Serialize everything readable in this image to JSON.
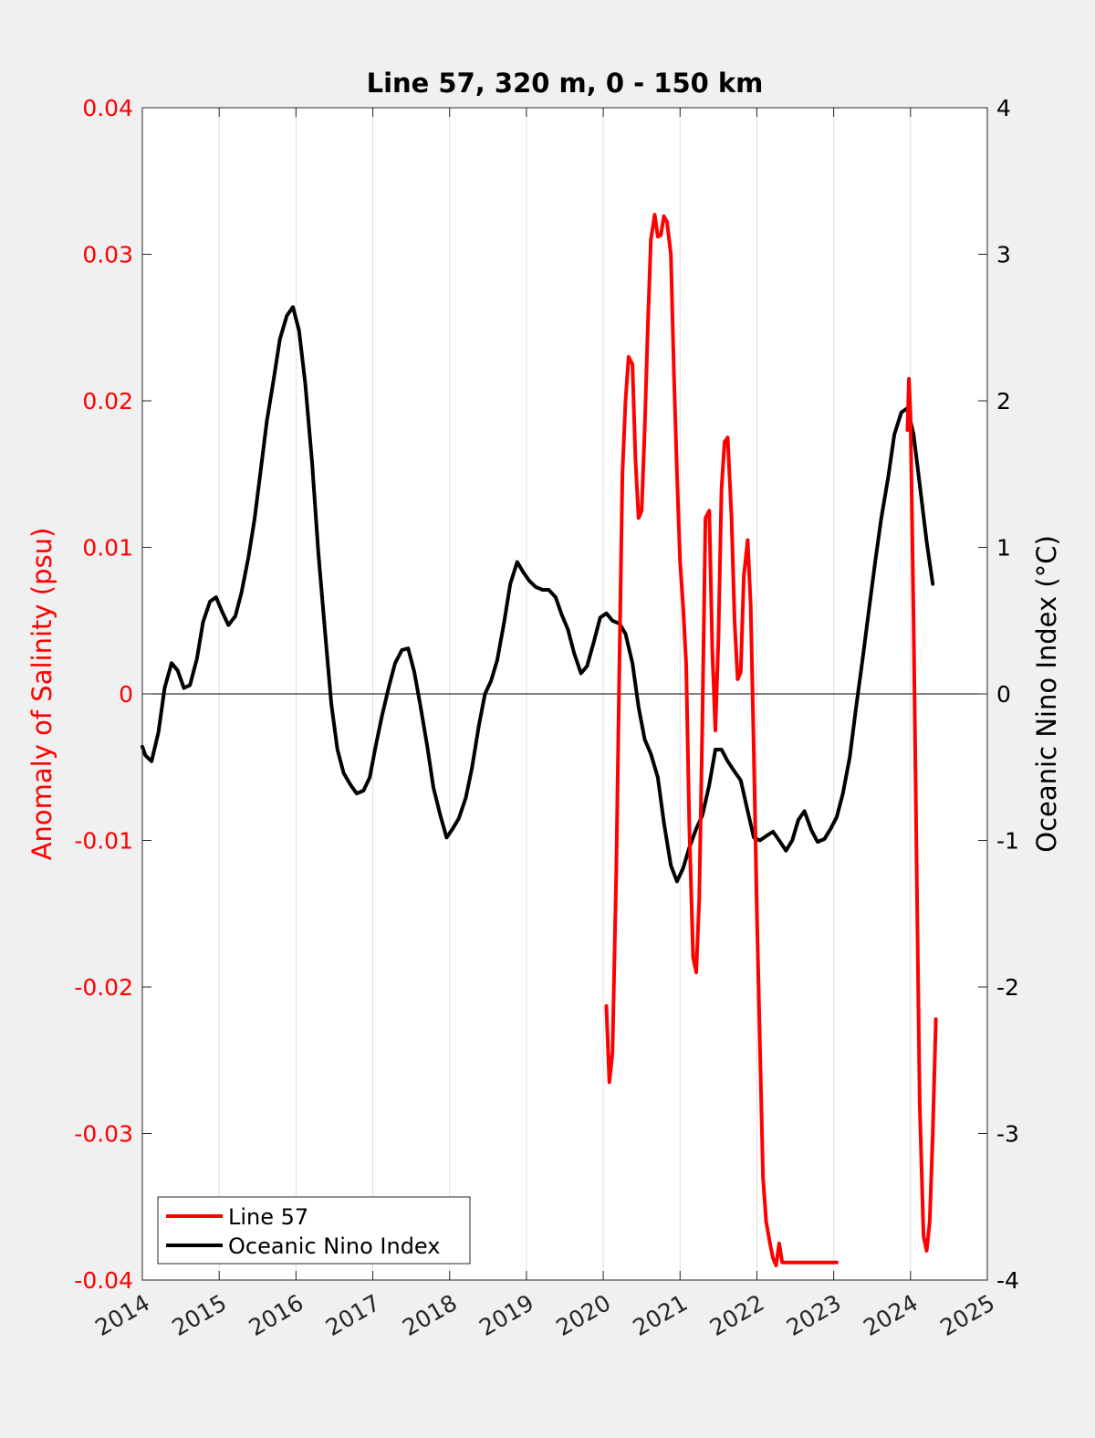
{
  "chart_data": {
    "type": "line",
    "title": "Line 57, 320 m, 0 - 150 km",
    "xlabel": "",
    "ylabel_left": "Anomaly of Salinity (psu)",
    "ylabel_right": "Oceanic Nino Index (°C)",
    "xlim": [
      2014,
      2025
    ],
    "ylim_left": [
      -0.04,
      0.04
    ],
    "ylim_right": [
      -4,
      4
    ],
    "x_ticks": [
      "2014",
      "2015",
      "2016",
      "2017",
      "2018",
      "2019",
      "2020",
      "2021",
      "2022",
      "2023",
      "2024",
      "2025"
    ],
    "y_ticks_left": [
      "-0.04",
      "-0.03",
      "-0.02",
      "-0.01",
      "0",
      "0.01",
      "0.02",
      "0.03",
      "0.04"
    ],
    "y_ticks_right": [
      "-4",
      "-3",
      "-2",
      "-1",
      "0",
      "1",
      "2",
      "3",
      "4"
    ],
    "grid": "vertical",
    "zero_line": true,
    "legend_position": "bottom-left",
    "colors": {
      "line57": "#ff0000",
      "oni": "#000000",
      "left_axis": "#ff0000",
      "right_axis": "#000000",
      "plot_bg": "#ffffff",
      "figure_bg": "#f0f0f0"
    },
    "series": [
      {
        "name": "Line 57",
        "axis": "left",
        "color": "#ff0000",
        "x": [
          2020.04,
          2020.08,
          2020.12,
          2020.17,
          2020.21,
          2020.25,
          2020.29,
          2020.33,
          2020.38,
          2020.42,
          2020.46,
          2020.5,
          2020.54,
          2020.58,
          2020.62,
          2020.67,
          2020.71,
          2020.75,
          2020.79,
          2020.83,
          2020.88,
          2020.92,
          2020.96,
          2021.0,
          2021.04,
          2021.08,
          2021.12,
          2021.17,
          2021.21,
          2021.25,
          2021.29,
          2021.33,
          2021.38,
          2021.42,
          2021.46,
          2021.5,
          2021.54,
          2021.58,
          2021.62,
          2021.67,
          2021.71,
          2021.75,
          2021.79,
          2021.83,
          2021.88,
          2021.92,
          2021.96,
          2022.0,
          2022.04,
          2022.08,
          2022.12,
          2022.17,
          2022.21,
          2022.25,
          2022.29,
          2022.33,
          2022.38,
          2022.42,
          2022.46,
          2022.5,
          2022.54,
          2022.58,
          2022.62,
          2022.67,
          2022.71,
          2022.75,
          2022.79,
          2022.83,
          2022.88,
          2022.92,
          2022.96,
          2023.0,
          2023.04
        ],
        "y": [
          -0.0213,
          -0.0265,
          -0.0245,
          -0.012,
          0.002,
          0.015,
          0.02,
          0.023,
          0.0225,
          0.016,
          0.012,
          0.0125,
          0.018,
          0.025,
          0.031,
          0.0327,
          0.0312,
          0.0313,
          0.0326,
          0.0322,
          0.03,
          0.022,
          0.015,
          0.009,
          0.006,
          0.002,
          -0.009,
          -0.018,
          -0.019,
          -0.014,
          -0.002,
          0.012,
          0.0125,
          0.003,
          -0.0025,
          0.004,
          0.014,
          0.0172,
          0.0175,
          0.012,
          0.005,
          0.001,
          0.0015,
          0.008,
          0.0105,
          0.006,
          -0.004,
          -0.015,
          -0.024,
          -0.033,
          -0.036,
          -0.0375,
          -0.0385,
          -0.039,
          -0.0375,
          -0.0388,
          -0.0388,
          -0.0388,
          -0.0388,
          -0.0388,
          -0.0388,
          -0.0388,
          -0.0388,
          -0.0388,
          -0.0388,
          -0.0388,
          -0.0388,
          -0.0388,
          -0.0388,
          -0.0388,
          -0.0388,
          -0.0388,
          -0.0388
        ]
      },
      {
        "name": "Line 57",
        "axis": "left",
        "color": "#ff0000",
        "x": [
          2023.96,
          2023.98,
          2024.0,
          2024.04,
          2024.08,
          2024.12,
          2024.17,
          2024.21,
          2024.25,
          2024.29,
          2024.33
        ],
        "y": [
          0.018,
          0.0215,
          0.019,
          0.005,
          -0.012,
          -0.028,
          -0.037,
          -0.038,
          -0.036,
          -0.03,
          -0.0222
        ]
      },
      {
        "name": "Oceanic Nino Index",
        "axis": "right",
        "color": "#000000",
        "x": [
          2014.0,
          2014.04,
          2014.12,
          2014.21,
          2014.29,
          2014.38,
          2014.46,
          2014.54,
          2014.62,
          2014.71,
          2014.79,
          2014.88,
          2014.96,
          2015.04,
          2015.12,
          2015.21,
          2015.29,
          2015.38,
          2015.46,
          2015.54,
          2015.62,
          2015.71,
          2015.79,
          2015.88,
          2015.96,
          2016.04,
          2016.12,
          2016.21,
          2016.29,
          2016.38,
          2016.46,
          2016.54,
          2016.62,
          2016.71,
          2016.79,
          2016.88,
          2016.96,
          2017.04,
          2017.12,
          2017.21,
          2017.29,
          2017.38,
          2017.46,
          2017.54,
          2017.62,
          2017.71,
          2017.79,
          2017.88,
          2017.96,
          2018.04,
          2018.12,
          2018.21,
          2018.29,
          2018.38,
          2018.46,
          2018.54,
          2018.62,
          2018.71,
          2018.79,
          2018.88,
          2018.96,
          2019.04,
          2019.12,
          2019.21,
          2019.29,
          2019.38,
          2019.46,
          2019.54,
          2019.62,
          2019.71,
          2019.79,
          2019.88,
          2019.96,
          2020.04,
          2020.12,
          2020.21,
          2020.29,
          2020.38,
          2020.46,
          2020.54,
          2020.62,
          2020.71,
          2020.79,
          2020.88,
          2020.96,
          2021.04,
          2021.12,
          2021.21,
          2021.29,
          2021.38,
          2021.46,
          2021.54,
          2021.62,
          2021.71,
          2021.79,
          2021.88,
          2021.96,
          2022.04,
          2022.12,
          2022.21,
          2022.29,
          2022.38,
          2022.46,
          2022.54,
          2022.62,
          2022.71,
          2022.79,
          2022.88,
          2022.96,
          2023.04,
          2023.12,
          2023.21,
          2023.29,
          2023.38,
          2023.46,
          2023.54,
          2023.62,
          2023.71,
          2023.79,
          2023.88,
          2023.96,
          2024.04,
          2024.12,
          2024.21,
          2024.29
        ],
        "y": [
          -0.36,
          -0.42,
          -0.46,
          -0.26,
          0.04,
          0.21,
          0.16,
          0.04,
          0.06,
          0.24,
          0.49,
          0.63,
          0.66,
          0.56,
          0.47,
          0.53,
          0.69,
          0.93,
          1.19,
          1.52,
          1.86,
          2.15,
          2.42,
          2.58,
          2.64,
          2.48,
          2.12,
          1.58,
          0.97,
          0.41,
          -0.07,
          -0.38,
          -0.54,
          -0.62,
          -0.68,
          -0.66,
          -0.57,
          -0.35,
          -0.15,
          0.05,
          0.21,
          0.3,
          0.31,
          0.15,
          -0.08,
          -0.36,
          -0.64,
          -0.83,
          -0.98,
          -0.92,
          -0.85,
          -0.71,
          -0.51,
          -0.22,
          0.0,
          0.09,
          0.23,
          0.49,
          0.75,
          0.9,
          0.83,
          0.77,
          0.73,
          0.71,
          0.71,
          0.66,
          0.54,
          0.44,
          0.28,
          0.14,
          0.19,
          0.36,
          0.52,
          0.55,
          0.5,
          0.48,
          0.41,
          0.21,
          -0.09,
          -0.31,
          -0.41,
          -0.57,
          -0.88,
          -1.17,
          -1.28,
          -1.19,
          -1.05,
          -0.92,
          -0.83,
          -0.62,
          -0.38,
          -0.38,
          -0.46,
          -0.53,
          -0.59,
          -0.8,
          -0.98,
          -1.0,
          -0.97,
          -0.94,
          -1.0,
          -1.07,
          -1.0,
          -0.86,
          -0.8,
          -0.93,
          -1.01,
          -0.99,
          -0.92,
          -0.84,
          -0.68,
          -0.43,
          -0.1,
          0.25,
          0.58,
          0.9,
          1.2,
          1.48,
          1.77,
          1.92,
          1.95,
          1.77,
          1.43,
          1.04,
          0.75
        ]
      }
    ]
  }
}
